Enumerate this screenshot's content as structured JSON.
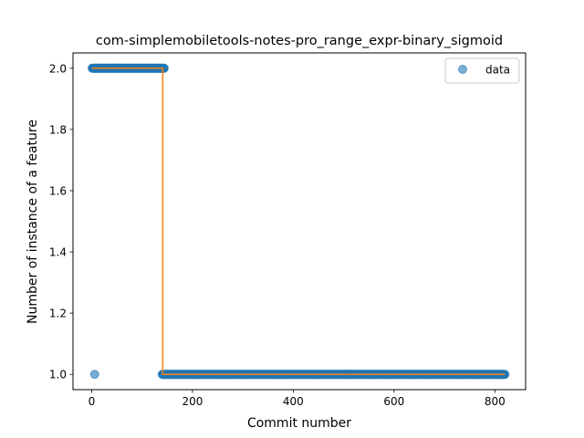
{
  "chart_data": {
    "type": "scatter",
    "title": "com-simplemobiletools-notes-pro_range_expr-binary_sigmoid",
    "xlabel": "Commit number",
    "ylabel": "Number of instance of a feature",
    "xlim": [
      -37,
      861
    ],
    "ylim": [
      0.95,
      2.05
    ],
    "x_ticks": [
      0,
      200,
      400,
      600,
      800
    ],
    "y_ticks": [
      1.0,
      1.2,
      1.4,
      1.6,
      1.8,
      2.0
    ],
    "y_tick_labels": [
      "1.0",
      "1.2",
      "1.4",
      "1.6",
      "1.8",
      "2.0"
    ],
    "legend": {
      "position": "top-right",
      "entries": [
        "data"
      ]
    },
    "grid": false,
    "colors": {
      "data": "#1f77b4",
      "fit": "#ff7f0e"
    },
    "series": [
      {
        "name": "data",
        "kind": "points",
        "segments": [
          {
            "x_start": 1,
            "x_end": 144,
            "step": 1,
            "y": 2.0
          },
          {
            "x_start": 140,
            "x_end": 820,
            "step": 1,
            "y": 1.0
          }
        ],
        "points": [
          [
            6,
            1.0
          ]
        ]
      },
      {
        "kind": "line",
        "points": [
          [
            1,
            2.0
          ],
          [
            141,
            2.0
          ],
          [
            141,
            1.0
          ],
          [
            820,
            1.0
          ]
        ]
      }
    ]
  }
}
